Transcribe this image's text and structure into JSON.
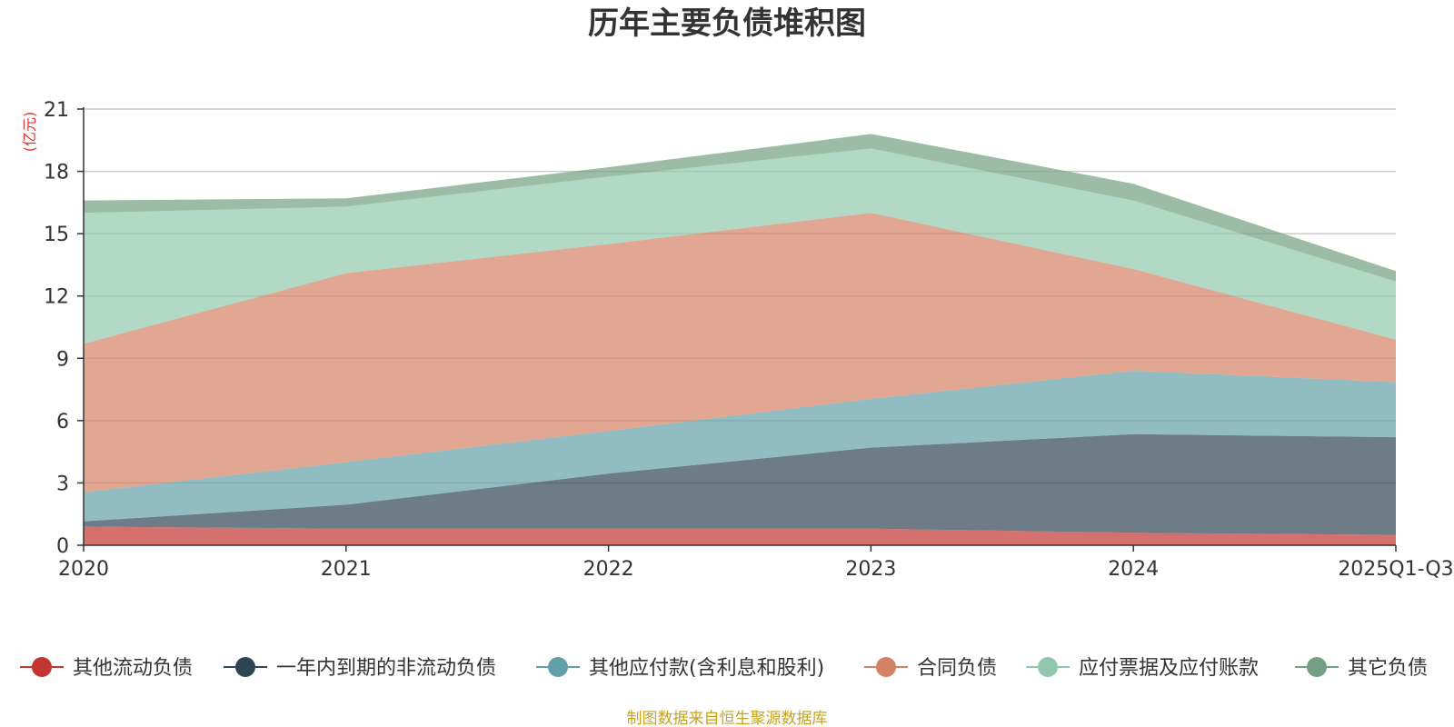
{
  "chart_data": {
    "type": "area",
    "stacked": true,
    "title": "历年主要负债堆积图",
    "unit_label": "(亿元)",
    "categories": [
      "2020",
      "2021",
      "2022",
      "2023",
      "2024",
      "2025Q1-Q3"
    ],
    "ylim": [
      0,
      21
    ],
    "yticks": [
      "0",
      "3",
      "6",
      "9",
      "12",
      "15",
      "18",
      "21"
    ],
    "grid": true,
    "legend_position": "bottom",
    "series": [
      {
        "name": "其他流动负债",
        "color": "#c23531",
        "values": [
          0.9,
          0.8,
          0.8,
          0.8,
          0.6,
          0.5
        ]
      },
      {
        "name": "一年内到期的非流动负债",
        "color": "#2f4554",
        "values": [
          0.25,
          1.15,
          2.65,
          3.9,
          4.75,
          4.7
        ]
      },
      {
        "name": "其他应付款(含利息和股利)",
        "color": "#61a0a8",
        "values": [
          1.4,
          2.05,
          2.05,
          2.35,
          3.05,
          2.65
        ]
      },
      {
        "name": "合同负债",
        "color": "#d48265",
        "values": [
          7.15,
          9.1,
          9.0,
          8.95,
          4.9,
          2.05
        ]
      },
      {
        "name": "应付票据及应付账款",
        "color": "#91c7ae",
        "values": [
          6.3,
          3.2,
          3.25,
          3.1,
          3.3,
          2.8
        ]
      },
      {
        "name": "其它负债",
        "color": "#749f83",
        "values": [
          0.6,
          0.4,
          0.45,
          0.7,
          0.8,
          0.5
        ]
      }
    ]
  },
  "footer": {
    "source": "制图数据来自恒生聚源数据库",
    "source_color": "#c8a21c"
  },
  "unit_color": "#e8322e"
}
